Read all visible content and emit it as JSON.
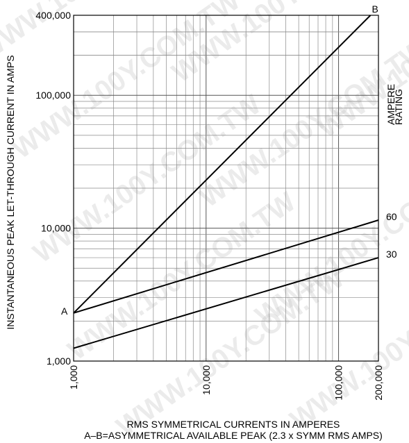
{
  "chart_data": {
    "type": "line",
    "x_scale": "log",
    "y_scale": "log",
    "xlim": [
      1000,
      200000
    ],
    "ylim": [
      1000,
      400000
    ],
    "grid": true,
    "ylabel": "INSTANTANEOUS PEAK LET-THROUGH CURRENT IN AMPS",
    "xlabel_lines": [
      "RMS SYMMETRICAL CURRENTS IN AMPERES",
      "A–B=ASYMMETRICAL AVAILABLE PEAK (2.3 x SYMM RMS AMPS)"
    ],
    "x_ticks": [
      {
        "value": 1000,
        "label": "1,000"
      },
      {
        "value": 10000,
        "label": "10,000"
      },
      {
        "value": 100000,
        "label": "100,000"
      },
      {
        "value": 200000,
        "label": "200,000"
      }
    ],
    "y_ticks": [
      {
        "value": 1000,
        "label": "1,000"
      },
      {
        "value": 10000,
        "label": "10,000"
      },
      {
        "value": 100000,
        "label": "100,000"
      },
      {
        "value": 400000,
        "label": "400,000"
      }
    ],
    "legend_title": [
      "AMPERE",
      "RATING"
    ],
    "series": [
      {
        "label": "A–B",
        "start_label": "A",
        "end_label": "B",
        "points": [
          [
            1000,
            2300
          ],
          [
            174000,
            400000
          ]
        ]
      },
      {
        "label": "60",
        "end_label": "60",
        "points": [
          [
            1000,
            2300
          ],
          [
            200000,
            11500
          ]
        ]
      },
      {
        "label": "30",
        "end_label": "30",
        "points": [
          [
            1000,
            1250
          ],
          [
            200000,
            6000
          ]
        ]
      }
    ]
  },
  "watermark": "WWW.100Y.COM.TW"
}
